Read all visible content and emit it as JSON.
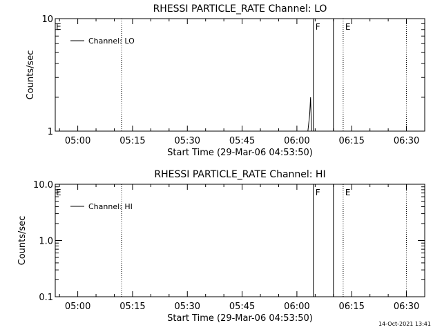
{
  "footer_timestamp": "14-Oct-2021 13:41",
  "chart_data": [
    {
      "type": "line",
      "title": "RHESSI PARTICLE_RATE Channel: LO",
      "xlabel": "Start Time (29-Mar-06 04:53:50)",
      "ylabel": "Counts/sec",
      "y_scale": "log",
      "ylim": [
        1,
        10
      ],
      "y_ticks": [
        "1",
        "10"
      ],
      "xlim": [
        "04:53:50",
        "06:35:00"
      ],
      "x_ticks": [
        "05:00",
        "05:15",
        "05:30",
        "05:45",
        "06:00",
        "06:15",
        "06:30"
      ],
      "grid": false,
      "legend": {
        "position": "top-left",
        "entries": [
          "Channel: LO"
        ]
      },
      "series": [
        {
          "name": "Channel: LO",
          "points": [
            [
              "06:03:00",
              1
            ],
            [
              "06:03:30",
              1.4
            ],
            [
              "06:03:45",
              2.0
            ],
            [
              "06:04:00",
              1
            ]
          ]
        }
      ],
      "markers": [
        {
          "time": "05:12:00",
          "style": "dotted",
          "label": ""
        },
        {
          "time": "06:04:30",
          "style": "solid",
          "label": "F"
        },
        {
          "time": "06:10:00",
          "style": "solid",
          "label": ""
        },
        {
          "time": "06:12:40",
          "style": "dotted",
          "label": "E"
        },
        {
          "time": "06:30:00",
          "style": "dotted",
          "label": ""
        }
      ],
      "corner_label": "E"
    },
    {
      "type": "line",
      "title": "RHESSI PARTICLE_RATE Channel: HI",
      "xlabel": "Start Time (29-Mar-06 04:53:50)",
      "ylabel": "Counts/sec",
      "y_scale": "log",
      "ylim": [
        0.1,
        10
      ],
      "y_ticks": [
        "0.1",
        "1.0",
        "10.0"
      ],
      "xlim": [
        "04:53:50",
        "06:35:00"
      ],
      "x_ticks": [
        "05:00",
        "05:15",
        "05:30",
        "05:45",
        "06:00",
        "06:15",
        "06:30"
      ],
      "grid": false,
      "legend": {
        "position": "top-left",
        "entries": [
          "Channel: HI"
        ]
      },
      "series": [
        {
          "name": "Channel: HI",
          "points": []
        }
      ],
      "markers": [
        {
          "time": "05:12:00",
          "style": "dotted",
          "label": ""
        },
        {
          "time": "06:04:30",
          "style": "solid",
          "label": "F"
        },
        {
          "time": "06:10:00",
          "style": "solid",
          "label": ""
        },
        {
          "time": "06:12:40",
          "style": "dotted",
          "label": "E"
        },
        {
          "time": "06:30:00",
          "style": "dotted",
          "label": ""
        }
      ],
      "corner_label": "E"
    }
  ]
}
